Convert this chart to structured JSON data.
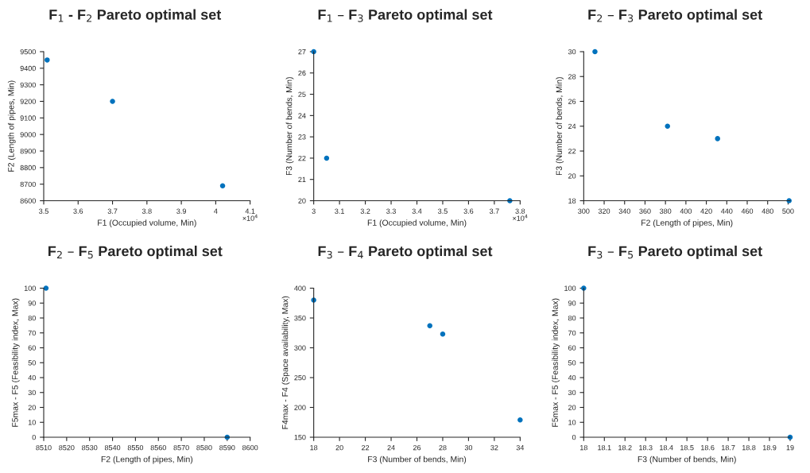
{
  "chart_data": [
    {
      "type": "scatter",
      "title": "F$_{1}$ - F$_{2}$ Pareto optimal set",
      "xlabel": "F1 (Occupied volume, Min)",
      "ylabel": "F2 (Length of pipes, Min)",
      "annotations": [
        "×10$^{4}$"
      ],
      "x": [
        3.51,
        3.7,
        4.02
      ],
      "values": [
        9450,
        9200,
        8690
      ],
      "color": "#0072bd",
      "marker": "circle",
      "grid": false,
      "xlim": [
        3.5,
        4.1
      ],
      "xticks": [
        3.5,
        3.6,
        3.7,
        3.8,
        3.9,
        4,
        4.1
      ],
      "ylim": [
        8600,
        9500
      ],
      "yticks": [
        8600,
        8700,
        8800,
        8900,
        9000,
        9100,
        9200,
        9300,
        9400,
        9500
      ]
    },
    {
      "type": "scatter",
      "title": "F$_{1}$ – F$_{3}$ Pareto optimal set",
      "xlabel": "F1 (Occupied volume, Min)",
      "ylabel": "F3 (Number of bends, Min)",
      "annotations": [
        "×10$^{4}$"
      ],
      "x": [
        3.0,
        3.05,
        3.76
      ],
      "values": [
        27,
        22,
        20
      ],
      "color": "#0072bd",
      "marker": "circle",
      "grid": false,
      "xlim": [
        3,
        3.8
      ],
      "xticks": [
        3,
        3.1,
        3.2,
        3.3,
        3.4,
        3.5,
        3.6,
        3.7,
        3.8
      ],
      "ylim": [
        20,
        27
      ],
      "yticks": [
        20,
        21,
        22,
        23,
        24,
        25,
        26,
        27
      ]
    },
    {
      "type": "scatter",
      "title": "F$_{2}$ – F$_{3}$ Pareto optimal set",
      "xlabel": "F2 (Length of pipes, Min)",
      "ylabel": "F3 (Number of bends, Min)",
      "x": [
        311,
        382,
        431,
        501
      ],
      "values": [
        30,
        24,
        23,
        18
      ],
      "color": "#0072bd",
      "marker": "circle",
      "grid": false,
      "xlim": [
        300,
        502
      ],
      "xticks": [
        300,
        320,
        340,
        360,
        380,
        400,
        420,
        440,
        460,
        480,
        500
      ],
      "ylim": [
        18,
        30
      ],
      "yticks": [
        18,
        20,
        22,
        24,
        26,
        28,
        30
      ]
    },
    {
      "type": "scatter",
      "title": "F$_{2}$ – F$_{5}$ Pareto optimal set",
      "xlabel": "F2 (Length of pipes, Min)",
      "ylabel": "F5max - F5 (Feasibility index, Max)",
      "x": [
        8511,
        8590
      ],
      "values": [
        100,
        0
      ],
      "color": "#0072bd",
      "marker": "circle",
      "grid": false,
      "xlim": [
        8510,
        8600
      ],
      "xticks": [
        8510,
        8520,
        8530,
        8540,
        8550,
        8560,
        8570,
        8580,
        8590,
        8600
      ],
      "ylim": [
        0,
        100
      ],
      "yticks": [
        0,
        10,
        20,
        30,
        40,
        50,
        60,
        70,
        80,
        90,
        100
      ]
    },
    {
      "type": "scatter",
      "title": "F$_{3}$ – F$_{4}$ Pareto optimal set",
      "xlabel": "F3 (Number of bends, Min)",
      "ylabel": "F4max - F4 (Space availability, Max)",
      "x": [
        18,
        27,
        28,
        34
      ],
      "values": [
        380,
        337,
        323,
        179
      ],
      "color": "#0072bd",
      "marker": "circle",
      "grid": false,
      "xlim": [
        18,
        34
      ],
      "xticks": [
        18,
        20,
        22,
        24,
        26,
        28,
        30,
        32,
        34
      ],
      "ylim": [
        150,
        400
      ],
      "yticks": [
        150,
        200,
        250,
        300,
        350,
        400
      ]
    },
    {
      "type": "scatter",
      "title": "F$_{3}$ – F$_{5}$ Pareto optimal set",
      "xlabel": "F3 (Number of bends, Min)",
      "ylabel": "F5max - F5 (Feasibility index, Max)",
      "x": [
        18,
        19
      ],
      "values": [
        100,
        0
      ],
      "color": "#0072bd",
      "marker": "circle",
      "grid": false,
      "xlim": [
        18,
        19
      ],
      "xticks": [
        18,
        18.1,
        18.2,
        18.3,
        18.4,
        18.5,
        18.6,
        18.7,
        18.8,
        18.9,
        19
      ],
      "ylim": [
        0,
        100
      ],
      "yticks": [
        0,
        10,
        20,
        30,
        40,
        50,
        60,
        70,
        80,
        90,
        100
      ]
    }
  ]
}
